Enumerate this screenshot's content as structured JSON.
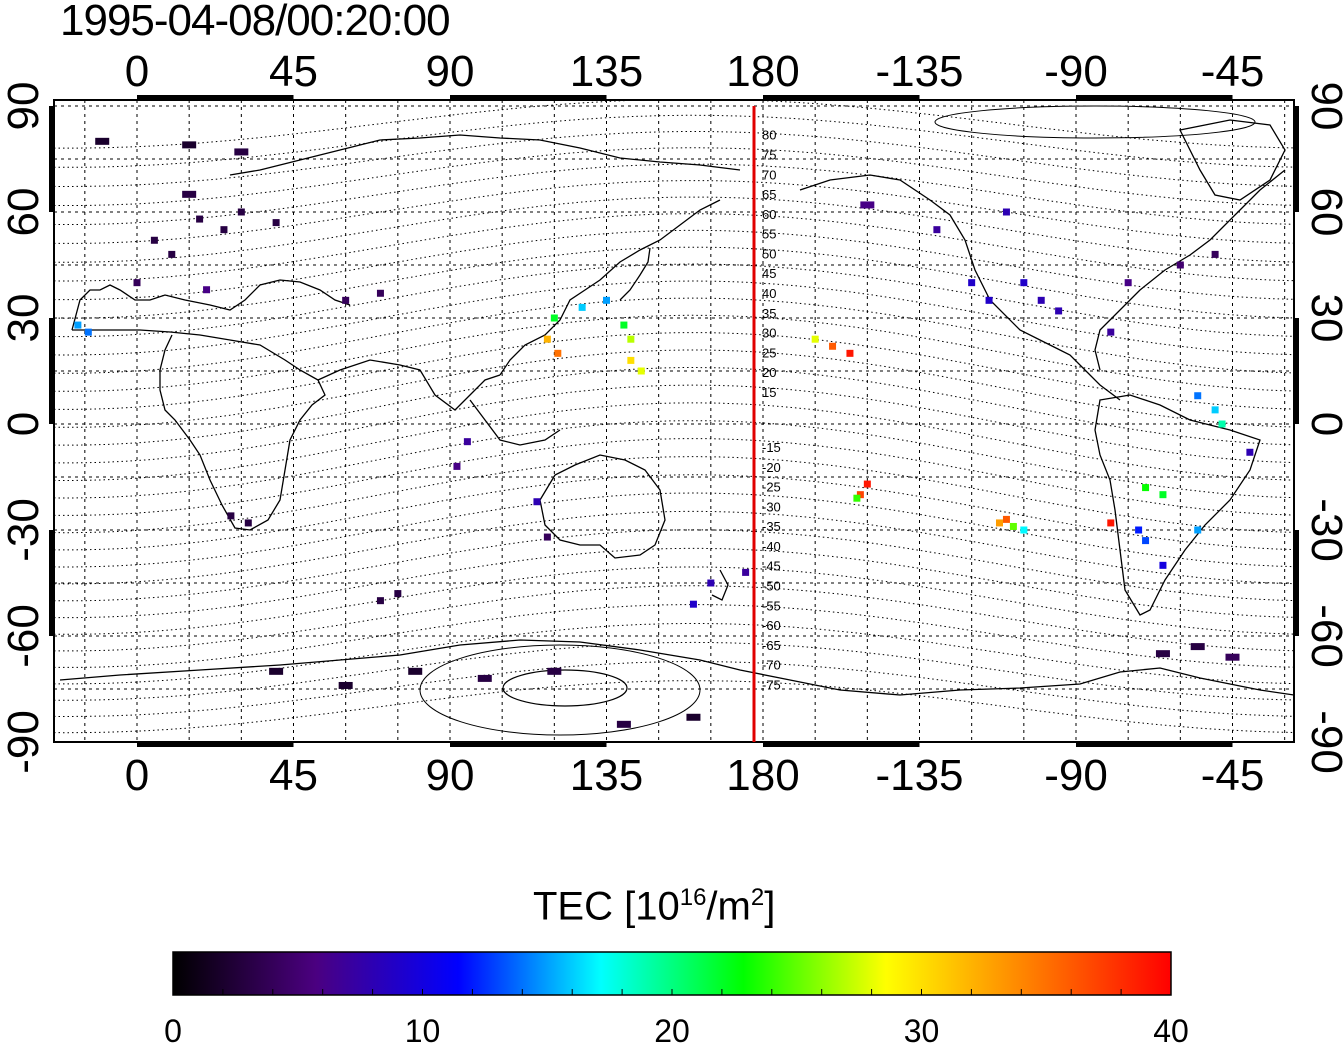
{
  "title": "1995-04-08/00:20:00",
  "map": {
    "lon_ticks_top": [
      "0",
      "45",
      "90",
      "135",
      "180",
      "-135",
      "-90",
      "-45"
    ],
    "lon_ticks_bottom": [
      "0",
      "45",
      "90",
      "135",
      "180",
      "-135",
      "-90",
      "-45"
    ],
    "lat_ticks_left": [
      "90",
      "60",
      "30",
      "0",
      "-30",
      "-60",
      "-90"
    ],
    "lat_ticks_right": [
      "90",
      "60",
      "30",
      "0",
      "-30",
      "-60",
      "-90"
    ],
    "meridian_line_color": "#e00000",
    "meridian_lon": 180,
    "contour_labels": [
      "80",
      "75",
      "70",
      "65",
      "60",
      "55",
      "50",
      "45",
      "40",
      "35",
      "30",
      "25",
      "20",
      "15",
      "-15",
      "-20",
      "-25",
      "-30",
      "-35",
      "-40",
      "-45",
      "-50",
      "-55",
      "-60",
      "-65",
      "-70",
      "-75"
    ]
  },
  "colorbar": {
    "title_main": "TEC  [10",
    "title_sup1": "16",
    "title_mid": "/m",
    "title_sup2": "2",
    "title_end": "]",
    "ticks": [
      "0",
      "10",
      "20",
      "30",
      "40"
    ],
    "min": 0,
    "max": 40,
    "colors": [
      "#000000",
      "#4b0080",
      "#0000ff",
      "#00ffff",
      "#00ff00",
      "#ffff00",
      "#ff8000",
      "#ff0000"
    ]
  },
  "tec_points": [
    {
      "lon": -17,
      "lat": 28,
      "tec": 15
    },
    {
      "lon": -14,
      "lat": 26,
      "tec": 14
    },
    {
      "lon": 10,
      "lat": 48,
      "tec": 3
    },
    {
      "lon": 5,
      "lat": 52,
      "tec": 3
    },
    {
      "lon": 18,
      "lat": 58,
      "tec": 3
    },
    {
      "lon": 25,
      "lat": 55,
      "tec": 3
    },
    {
      "lon": 15,
      "lat": 65,
      "tec": 3
    },
    {
      "lon": 0,
      "lat": 40,
      "tec": 4
    },
    {
      "lon": 20,
      "lat": 38,
      "tec": 6
    },
    {
      "lon": 30,
      "lat": 60,
      "tec": 3
    },
    {
      "lon": 40,
      "lat": 57,
      "tec": 3
    },
    {
      "lon": 60,
      "lat": 35,
      "tec": 4
    },
    {
      "lon": 70,
      "lat": 37,
      "tec": 4
    },
    {
      "lon": 120,
      "lat": 30,
      "tec": 22
    },
    {
      "lon": 118,
      "lat": 24,
      "tec": 32
    },
    {
      "lon": 121,
      "lat": 20,
      "tec": 35
    },
    {
      "lon": 128,
      "lat": 33,
      "tec": 16
    },
    {
      "lon": 135,
      "lat": 35,
      "tec": 15
    },
    {
      "lon": 140,
      "lat": 28,
      "tec": 22
    },
    {
      "lon": 142,
      "lat": 24,
      "tec": 27
    },
    {
      "lon": 145,
      "lat": 15,
      "tec": 28
    },
    {
      "lon": 142,
      "lat": 18,
      "tec": 30
    },
    {
      "lon": 95,
      "lat": -5,
      "tec": 7
    },
    {
      "lon": 92,
      "lat": -12,
      "tec": 6
    },
    {
      "lon": 115,
      "lat": -22,
      "tec": 8
    },
    {
      "lon": 118,
      "lat": -32,
      "tec": 4
    },
    {
      "lon": 27,
      "lat": -26,
      "tec": 3
    },
    {
      "lon": 32,
      "lat": -28,
      "tec": 3
    },
    {
      "lon": 165,
      "lat": -45,
      "tec": 8
    },
    {
      "lon": 175,
      "lat": -42,
      "tec": 7
    },
    {
      "lon": 160,
      "lat": -51,
      "tec": 9
    },
    {
      "lon": -160,
      "lat": 22,
      "tec": 36
    },
    {
      "lon": -155,
      "lat": 20,
      "tec": 39
    },
    {
      "lon": -165,
      "lat": 24,
      "tec": 28
    },
    {
      "lon": -150,
      "lat": -17,
      "tec": 39
    },
    {
      "lon": -152,
      "lat": -20,
      "tec": 37
    },
    {
      "lon": -153,
      "lat": -21,
      "tec": 24
    },
    {
      "lon": -110,
      "lat": -27,
      "tec": 36
    },
    {
      "lon": -108,
      "lat": -29,
      "tec": 25
    },
    {
      "lon": -112,
      "lat": -28,
      "tec": 33
    },
    {
      "lon": -105,
      "lat": -30,
      "tec": 17
    },
    {
      "lon": -120,
      "lat": 40,
      "tec": 9
    },
    {
      "lon": -115,
      "lat": 35,
      "tec": 9
    },
    {
      "lon": -105,
      "lat": 40,
      "tec": 9
    },
    {
      "lon": -110,
      "lat": 60,
      "tec": 8
    },
    {
      "lon": -100,
      "lat": 35,
      "tec": 8
    },
    {
      "lon": -95,
      "lat": 32,
      "tec": 8
    },
    {
      "lon": -80,
      "lat": 26,
      "tec": 7
    },
    {
      "lon": -75,
      "lat": 40,
      "tec": 6
    },
    {
      "lon": -60,
      "lat": 45,
      "tec": 5
    },
    {
      "lon": -50,
      "lat": 48,
      "tec": 4
    },
    {
      "lon": -130,
      "lat": 55,
      "tec": 7
    },
    {
      "lon": -150,
      "lat": 62,
      "tec": 6
    },
    {
      "lon": -55,
      "lat": 8,
      "tec": 14
    },
    {
      "lon": -50,
      "lat": 4,
      "tec": 16
    },
    {
      "lon": -48,
      "lat": 0,
      "tec": 19
    },
    {
      "lon": -40,
      "lat": -8,
      "tec": 8
    },
    {
      "lon": -70,
      "lat": -18,
      "tec": 23
    },
    {
      "lon": -65,
      "lat": -20,
      "tec": 22
    },
    {
      "lon": -72,
      "lat": -30,
      "tec": 12
    },
    {
      "lon": -70,
      "lat": -33,
      "tec": 13
    },
    {
      "lon": -80,
      "lat": -28,
      "tec": 39
    },
    {
      "lon": -55,
      "lat": -30,
      "tec": 15
    },
    {
      "lon": -65,
      "lat": -40,
      "tec": 10
    },
    {
      "lon": 70,
      "lat": -50,
      "tec": 3
    },
    {
      "lon": 75,
      "lat": -48,
      "tec": 3
    },
    {
      "lon": 40,
      "lat": -70,
      "tec": 2
    },
    {
      "lon": 60,
      "lat": -74,
      "tec": 2
    },
    {
      "lon": 80,
      "lat": -70,
      "tec": 2
    },
    {
      "lon": 100,
      "lat": -72,
      "tec": 3
    },
    {
      "lon": 120,
      "lat": -70,
      "tec": 3
    },
    {
      "lon": 140,
      "lat": -85,
      "tec": 3
    },
    {
      "lon": 160,
      "lat": -83,
      "tec": 2
    },
    {
      "lon": -65,
      "lat": -65,
      "tec": 3
    },
    {
      "lon": -55,
      "lat": -63,
      "tec": 3
    },
    {
      "lon": -45,
      "lat": -66,
      "tec": 4
    },
    {
      "lon": -10,
      "lat": 80,
      "tec": 2
    },
    {
      "lon": 15,
      "lat": 79,
      "tec": 2
    },
    {
      "lon": 30,
      "lat": 77,
      "tec": 3
    }
  ]
}
